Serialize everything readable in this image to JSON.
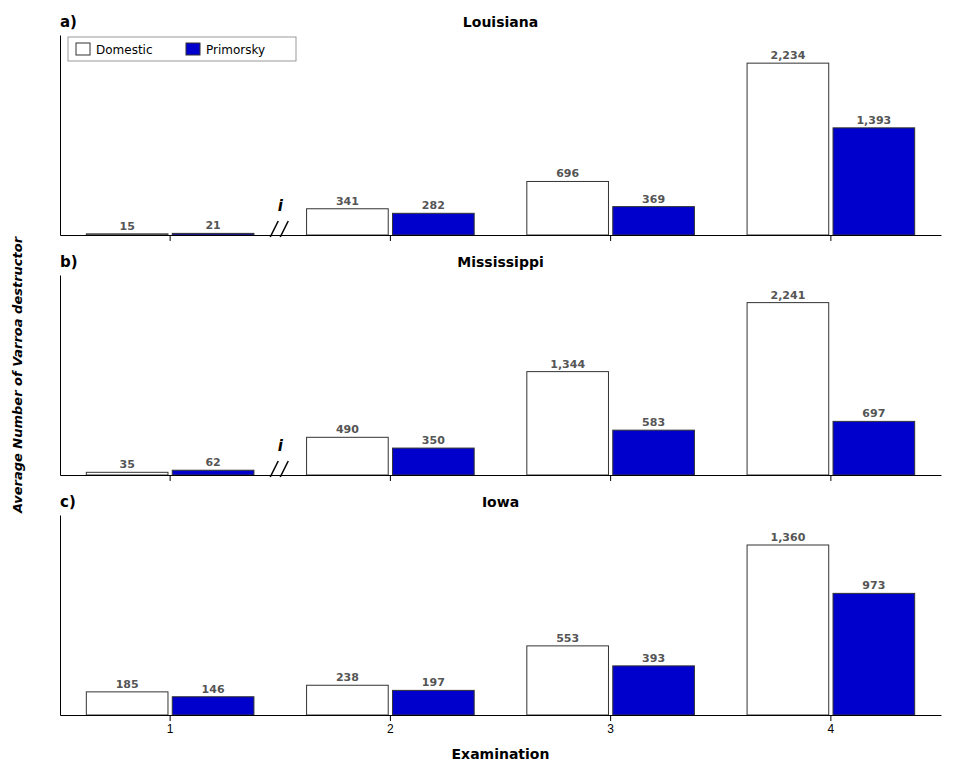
{
  "chart_data": [
    {
      "type": "bar",
      "title": "Louisiana",
      "annotations": [
        "a)",
        "i"
      ],
      "categories": [
        "1",
        "2",
        "3",
        "4"
      ],
      "series": [
        {
          "name": "Domestic",
          "color": "#ffffff",
          "values": [
            15,
            341,
            696,
            2234
          ],
          "value_labels": [
            "15",
            "341",
            "696",
            "2,234"
          ]
        },
        {
          "name": "Primorsky",
          "color": "#0000cc",
          "values": [
            21,
            282,
            369,
            1393
          ],
          "value_labels": [
            "21",
            "282",
            "369",
            "1,393"
          ]
        }
      ],
      "ylim": [
        0,
        2600
      ],
      "yticks": [],
      "grid": false,
      "legend": "upper left",
      "data_labels": true,
      "tick_labels": false
    },
    {
      "type": "bar",
      "title": "Mississippi",
      "annotations": [
        "b)",
        "i"
      ],
      "ylabel": "Average Number of Varroa destructor",
      "categories": [
        "1",
        "2",
        "3",
        "4"
      ],
      "series": [
        {
          "name": "Domestic",
          "color": "#ffffff",
          "values": [
            35,
            490,
            1344,
            2241
          ],
          "value_labels": [
            "35",
            "490",
            "1,344",
            "2,241"
          ]
        },
        {
          "name": "Primorsky",
          "color": "#0000cc",
          "values": [
            62,
            350,
            583,
            697
          ],
          "value_labels": [
            "62",
            "350",
            "583",
            "697"
          ]
        }
      ],
      "ylim": [
        0,
        2600
      ],
      "yticks": [],
      "grid": false,
      "legend": false,
      "data_labels": true,
      "tick_labels": false
    },
    {
      "type": "bar",
      "title": "Iowa",
      "annotations": [
        "c)"
      ],
      "xlabel": "Examination",
      "categories": [
        "1",
        "2",
        "3",
        "4"
      ],
      "series": [
        {
          "name": "Domestic",
          "color": "#ffffff",
          "values": [
            185,
            238,
            553,
            1360
          ],
          "value_labels": [
            "185",
            "238",
            "553",
            "1,360"
          ]
        },
        {
          "name": "Primorsky",
          "color": "#0000cc",
          "values": [
            146,
            197,
            393,
            973
          ],
          "value_labels": [
            "146",
            "197",
            "393",
            "973"
          ]
        }
      ],
      "ylim": [
        0,
        1600
      ],
      "yticks": [],
      "grid": false,
      "legend": false,
      "data_labels": true,
      "tick_labels": "x"
    }
  ]
}
